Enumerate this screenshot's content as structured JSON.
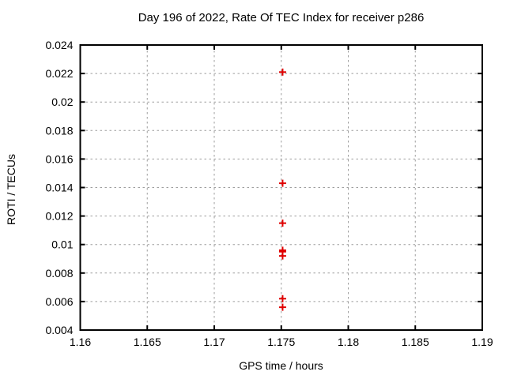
{
  "figure": {
    "title": "Day 196 of 2022, Rate Of TEC Index for receiver p286"
  },
  "colors": {
    "marker": "#e00000",
    "grid": "#9e9e9e",
    "axis": "#000000",
    "background": "#ffffff"
  },
  "chart_data": {
    "type": "scatter",
    "title": "Day 196 of 2022, Rate Of TEC Index for receiver p286",
    "xlabel": "GPS time / hours",
    "ylabel": "ROTI / TECUs",
    "xlim": [
      1.16,
      1.19
    ],
    "ylim": [
      0.004,
      0.024
    ],
    "grid": true,
    "legend": "none",
    "marker": "plus",
    "xticks": [
      {
        "v": 1.16,
        "label": "1.16"
      },
      {
        "v": 1.165,
        "label": "1.165"
      },
      {
        "v": 1.17,
        "label": "1.17"
      },
      {
        "v": 1.175,
        "label": "1.175"
      },
      {
        "v": 1.18,
        "label": "1.18"
      },
      {
        "v": 1.185,
        "label": "1.185"
      },
      {
        "v": 1.19,
        "label": "1.19"
      }
    ],
    "yticks": [
      {
        "v": 0.004,
        "label": "0.004"
      },
      {
        "v": 0.006,
        "label": "0.006"
      },
      {
        "v": 0.008,
        "label": "0.008"
      },
      {
        "v": 0.01,
        "label": "0.01"
      },
      {
        "v": 0.012,
        "label": "0.012"
      },
      {
        "v": 0.014,
        "label": "0.014"
      },
      {
        "v": 0.016,
        "label": "0.016"
      },
      {
        "v": 0.018,
        "label": "0.018"
      },
      {
        "v": 0.02,
        "label": "0.02"
      },
      {
        "v": 0.022,
        "label": "0.022"
      },
      {
        "v": 0.024,
        "label": "0.024"
      }
    ],
    "series": [
      {
        "name": "ROTI",
        "x": [
          1.1751,
          1.1751,
          1.1751,
          1.1751,
          1.1751,
          1.1751,
          1.1751,
          1.1751
        ],
        "y": [
          0.0221,
          0.0143,
          0.0115,
          0.0096,
          0.0095,
          0.0092,
          0.0062,
          0.0056
        ]
      }
    ]
  }
}
